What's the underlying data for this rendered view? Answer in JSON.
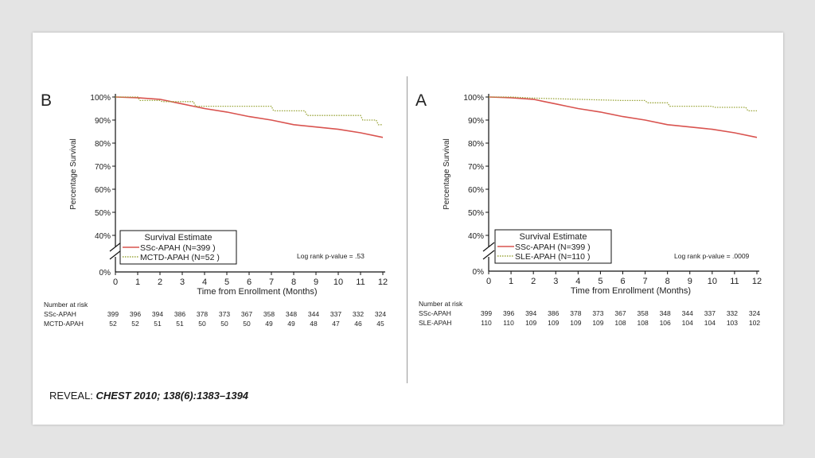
{
  "caption": {
    "prefix": "REVEAL: ",
    "citation": "CHEST 2010; 138(6):1383–1394"
  },
  "chart_data": [
    {
      "type": "line",
      "panel_letter": "B",
      "xlabel": "Time from Enrollment (Months)",
      "ylabel": "Percentage Survival",
      "x_ticks": [
        "0",
        "1",
        "2",
        "3",
        "4",
        "5",
        "6",
        "7",
        "8",
        "9",
        "10",
        "11",
        "12"
      ],
      "y_ticks": [
        "100%",
        "90%",
        "80%",
        "70%",
        "60%",
        "50%",
        "40%"
      ],
      "y_zero_label": "0%",
      "xlim": [
        0,
        12
      ],
      "ylim": [
        40,
        100
      ],
      "axis_break": true,
      "legend_title": "Survival Estimate",
      "legend_position": "bottom-left",
      "annotation": "Log rank p-value =  .53",
      "series": [
        {
          "name": "SSc-APAH (N=399 )",
          "color": "#d9534f",
          "style": "solid",
          "x": [
            0,
            1,
            2,
            2.5,
            3,
            3.5,
            4,
            5,
            6,
            7,
            8,
            9,
            10,
            11,
            12
          ],
          "y": [
            100,
            99.7,
            99,
            98,
            97,
            96,
            95,
            93.5,
            91.5,
            90,
            88,
            87,
            86,
            84.5,
            82.5
          ]
        },
        {
          "name": "MCTD-APAH (N=52  )",
          "color": "#9aa53a",
          "style": "dotted",
          "x": [
            0,
            1,
            1.1,
            2,
            2.1,
            3.5,
            3.6,
            5.5,
            5.6,
            7,
            7.1,
            8.5,
            8.6,
            11,
            11.1,
            11.7,
            11.8,
            12
          ],
          "y": [
            100,
            100,
            98.5,
            98.5,
            98,
            98,
            96,
            96,
            96,
            96,
            94,
            94,
            92,
            92,
            90,
            90,
            88,
            88
          ]
        }
      ],
      "risk_table": {
        "title": "Number at risk",
        "rows": [
          {
            "label": "SSc-APAH",
            "values": [
              "399",
              "396",
              "394",
              "386",
              "378",
              "373",
              "367",
              "358",
              "348",
              "344",
              "337",
              "332",
              "324"
            ]
          },
          {
            "label": "MCTD-APAH",
            "values": [
              "52",
              "52",
              "51",
              "51",
              "50",
              "50",
              "50",
              "49",
              "49",
              "48",
              "47",
              "46",
              "45"
            ]
          }
        ]
      }
    },
    {
      "type": "line",
      "panel_letter": "A",
      "xlabel": "Time from Enrollment (Months)",
      "ylabel": "Percentage Survival",
      "x_ticks": [
        "0",
        "1",
        "2",
        "3",
        "4",
        "5",
        "6",
        "7",
        "8",
        "9",
        "10",
        "11",
        "12"
      ],
      "y_ticks": [
        "100%",
        "90%",
        "80%",
        "70%",
        "60%",
        "50%",
        "40%"
      ],
      "y_zero_label": "0%",
      "xlim": [
        0,
        12
      ],
      "ylim": [
        40,
        100
      ],
      "axis_break": true,
      "legend_title": "Survival Estimate",
      "legend_position": "bottom-left",
      "annotation": "Log rank p-value = .0009",
      "series": [
        {
          "name": "SSc-APAH (N=399 )",
          "color": "#d9534f",
          "style": "solid",
          "x": [
            0,
            1,
            2,
            2.5,
            3,
            3.5,
            4,
            5,
            6,
            7,
            8,
            9,
            10,
            11,
            12
          ],
          "y": [
            100,
            99.7,
            99,
            98,
            97,
            96,
            95,
            93.5,
            91.5,
            90,
            88,
            87,
            86,
            84.5,
            82.5
          ]
        },
        {
          "name": "SLE-APAH (N=110 )",
          "color": "#9aa53a",
          "style": "dotted",
          "x": [
            0,
            1,
            2,
            4,
            6,
            7,
            7.1,
            8,
            8.1,
            10,
            10.1,
            11.5,
            11.6,
            12
          ],
          "y": [
            100,
            100,
            99.5,
            99,
            98.5,
            98.5,
            97.5,
            97.5,
            96,
            96,
            95.5,
            95.5,
            94,
            94
          ]
        }
      ],
      "risk_table": {
        "title": "Number at risk",
        "rows": [
          {
            "label": "SSc-APAH",
            "values": [
              "399",
              "396",
              "394",
              "386",
              "378",
              "373",
              "367",
              "358",
              "348",
              "344",
              "337",
              "332",
              "324"
            ]
          },
          {
            "label": "SLE-APAH",
            "values": [
              "110",
              "110",
              "109",
              "109",
              "109",
              "109",
              "108",
              "108",
              "106",
              "104",
              "104",
              "103",
              "102"
            ]
          }
        ]
      }
    }
  ]
}
